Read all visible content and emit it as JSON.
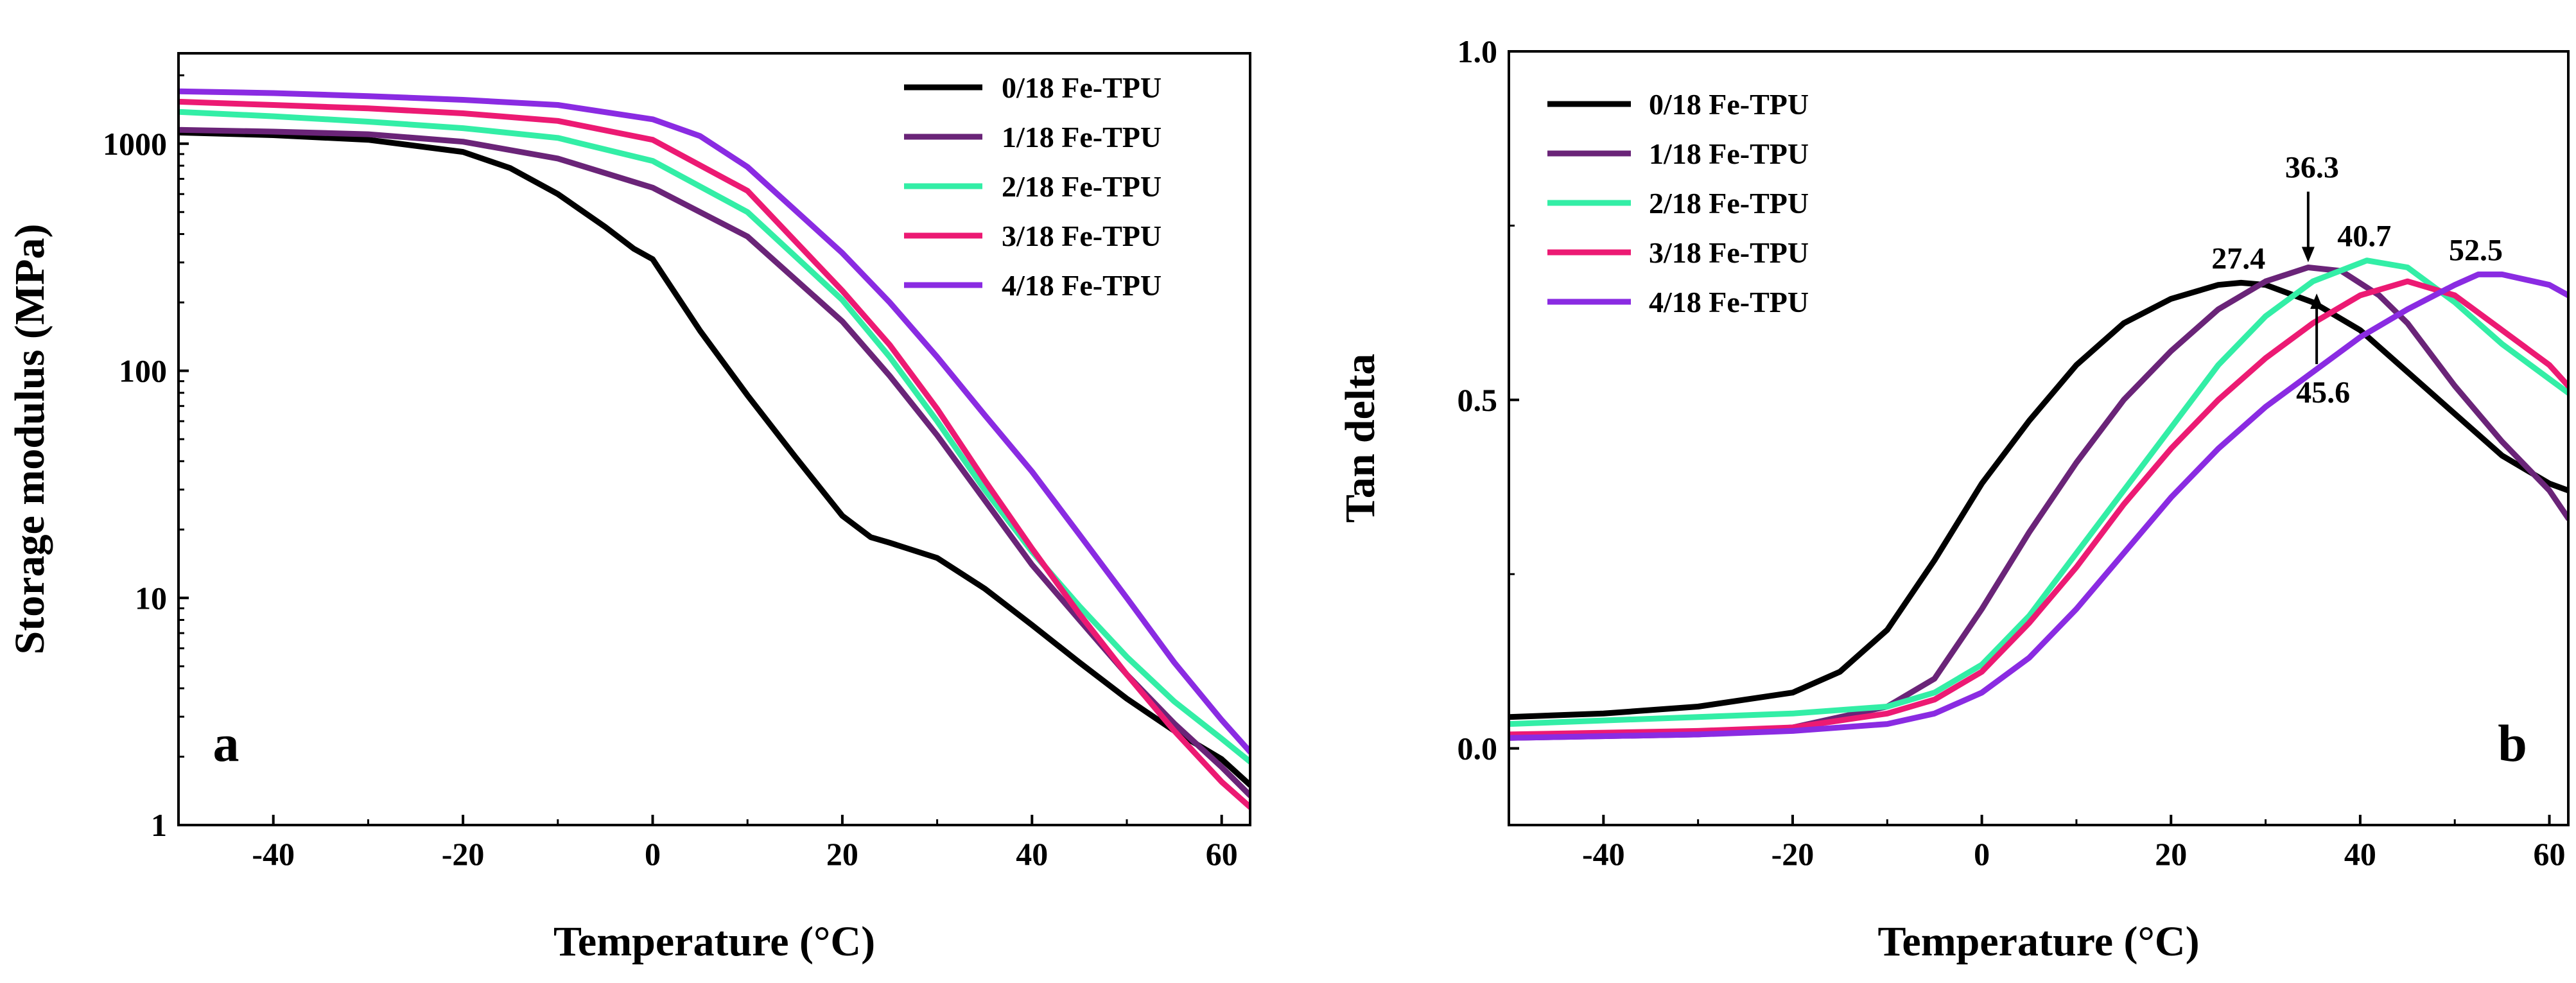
{
  "colors": {
    "black": "#000000",
    "purple": "#6a2478",
    "green": "#33eea6",
    "pink": "#ec1a73",
    "violet": "#8a2be2"
  },
  "chart_data": [
    {
      "id": "a",
      "type": "line",
      "panel_label": "a",
      "title": "",
      "xlabel": "Temperature (°C)",
      "ylabel": "Storage modulus (MPa)",
      "xlim": [
        -50,
        63
      ],
      "ylim": [
        1,
        2500
      ],
      "yscale": "log",
      "xticks": [
        -40,
        -20,
        0,
        20,
        40,
        60
      ],
      "xtick_labels": [
        "-40",
        "-20",
        "0",
        "20",
        "40",
        "60"
      ],
      "yticks": [
        1,
        10,
        100,
        1000
      ],
      "ytick_labels": [
        "1",
        "10",
        "100",
        "1000"
      ],
      "legend_position": "top-right",
      "series": [
        {
          "name": "0/18 Fe-TPU",
          "color": "#000000",
          "x": [
            -50,
            -40,
            -30,
            -20,
            -15,
            -10,
            -5,
            -2,
            0,
            5,
            10,
            15,
            20,
            23,
            25,
            30,
            35,
            40,
            45,
            50,
            55,
            60,
            63
          ],
          "y": [
            1120,
            1090,
            1040,
            920,
            780,
            600,
            430,
            345,
            310,
            150,
            78,
            42,
            23,
            18.5,
            17.5,
            15,
            11,
            7.6,
            5.2,
            3.6,
            2.6,
            1.95,
            1.5
          ]
        },
        {
          "name": "1/18 Fe-TPU",
          "color": "#6a2478",
          "x": [
            -50,
            -40,
            -30,
            -20,
            -10,
            0,
            10,
            20,
            25,
            30,
            35,
            40,
            45,
            50,
            55,
            60,
            63
          ],
          "y": [
            1150,
            1130,
            1100,
            1020,
            860,
            640,
            390,
            165,
            95,
            52,
            27,
            14,
            8,
            4.6,
            2.8,
            1.8,
            1.35
          ]
        },
        {
          "name": "2/18 Fe-TPU",
          "color": "#33eea6",
          "x": [
            -50,
            -40,
            -30,
            -20,
            -10,
            0,
            10,
            20,
            25,
            30,
            35,
            40,
            45,
            50,
            55,
            60,
            63
          ],
          "y": [
            1380,
            1320,
            1250,
            1170,
            1060,
            840,
            500,
            205,
            115,
            60,
            30,
            16,
            9.2,
            5.5,
            3.5,
            2.4,
            1.9
          ]
        },
        {
          "name": "3/18 Fe-TPU",
          "color": "#ec1a73",
          "x": [
            -50,
            -40,
            -30,
            -20,
            -10,
            0,
            10,
            20,
            25,
            30,
            35,
            40,
            45,
            50,
            55,
            60,
            63
          ],
          "y": [
            1530,
            1480,
            1430,
            1360,
            1260,
            1040,
            620,
            225,
            130,
            68,
            33,
            16.5,
            8.5,
            4.6,
            2.6,
            1.55,
            1.2
          ]
        },
        {
          "name": "4/18 Fe-TPU",
          "color": "#8a2be2",
          "x": [
            -50,
            -40,
            -30,
            -20,
            -10,
            0,
            5,
            10,
            20,
            25,
            30,
            35,
            40,
            45,
            50,
            55,
            60,
            63
          ],
          "y": [
            1700,
            1670,
            1620,
            1560,
            1480,
            1280,
            1080,
            790,
            330,
            200,
            115,
            64,
            36,
            19,
            10,
            5.2,
            2.9,
            2.1
          ]
        }
      ]
    },
    {
      "id": "b",
      "type": "line",
      "panel_label": "b",
      "title": "",
      "xlabel": "Temperature (°C)",
      "ylabel": "Tan delta",
      "xlim": [
        -50,
        62
      ],
      "ylim": [
        -0.11,
        1.0
      ],
      "yscale": "linear",
      "xticks": [
        -40,
        -20,
        0,
        20,
        40,
        60
      ],
      "xtick_labels": [
        "-40",
        "-20",
        "0",
        "20",
        "40",
        "60"
      ],
      "yticks": [
        0.0,
        0.5,
        1.0
      ],
      "ytick_labels": [
        "0.0",
        "0.5",
        "1.0"
      ],
      "legend_position": "top-left",
      "annotations": [
        {
          "text": "27.4",
          "x": 27.4,
          "y": 0.668,
          "style": "label"
        },
        {
          "text": "36.3",
          "x": 34.5,
          "y": 0.69,
          "style": "arrow-down"
        },
        {
          "text": "40.7",
          "x": 40.7,
          "y": 0.7,
          "style": "label"
        },
        {
          "text": "45.6",
          "x": 35.4,
          "y": 0.66,
          "style": "arrow-up"
        },
        {
          "text": "52.5",
          "x": 52.5,
          "y": 0.68,
          "style": "label"
        }
      ],
      "series": [
        {
          "name": "0/18 Fe-TPU",
          "color": "#000000",
          "x": [
            -50,
            -40,
            -30,
            -20,
            -15,
            -10,
            -5,
            0,
            5,
            10,
            15,
            20,
            25,
            27.4,
            30,
            35,
            40,
            45,
            50,
            55,
            60,
            62
          ],
          "y": [
            0.045,
            0.05,
            0.06,
            0.08,
            0.11,
            0.17,
            0.27,
            0.38,
            0.47,
            0.55,
            0.61,
            0.645,
            0.665,
            0.668,
            0.665,
            0.64,
            0.6,
            0.54,
            0.48,
            0.42,
            0.38,
            0.37
          ]
        },
        {
          "name": "1/18 Fe-TPU",
          "color": "#6a2478",
          "x": [
            -50,
            -30,
            -20,
            -10,
            -5,
            0,
            5,
            10,
            15,
            20,
            25,
            30,
            34.5,
            38,
            42,
            45,
            50,
            55,
            60,
            62
          ],
          "y": [
            0.015,
            0.02,
            0.03,
            0.06,
            0.1,
            0.2,
            0.31,
            0.41,
            0.5,
            0.57,
            0.63,
            0.67,
            0.69,
            0.685,
            0.65,
            0.61,
            0.52,
            0.44,
            0.37,
            0.33
          ]
        },
        {
          "name": "2/18 Fe-TPU",
          "color": "#33eea6",
          "x": [
            -50,
            -30,
            -20,
            -10,
            -5,
            0,
            5,
            10,
            15,
            20,
            25,
            30,
            35,
            40.7,
            45,
            50,
            55,
            60,
            62
          ],
          "y": [
            0.035,
            0.045,
            0.05,
            0.06,
            0.08,
            0.12,
            0.19,
            0.28,
            0.37,
            0.46,
            0.55,
            0.62,
            0.67,
            0.7,
            0.69,
            0.64,
            0.58,
            0.53,
            0.51
          ]
        },
        {
          "name": "3/18 Fe-TPU",
          "color": "#ec1a73",
          "x": [
            -50,
            -30,
            -20,
            -10,
            -5,
            0,
            5,
            10,
            15,
            20,
            25,
            30,
            35,
            40,
            45,
            50,
            55,
            60,
            62
          ],
          "y": [
            0.02,
            0.025,
            0.03,
            0.05,
            0.07,
            0.11,
            0.18,
            0.26,
            0.35,
            0.43,
            0.5,
            0.56,
            0.61,
            0.65,
            0.67,
            0.65,
            0.6,
            0.55,
            0.52
          ]
        },
        {
          "name": "4/18 Fe-TPU",
          "color": "#8a2be2",
          "x": [
            -50,
            -30,
            -20,
            -10,
            -5,
            0,
            5,
            10,
            15,
            20,
            25,
            30,
            35,
            40,
            45,
            50,
            52.5,
            55,
            60,
            62
          ],
          "y": [
            0.015,
            0.02,
            0.025,
            0.035,
            0.05,
            0.08,
            0.13,
            0.2,
            0.28,
            0.36,
            0.43,
            0.49,
            0.54,
            0.59,
            0.63,
            0.665,
            0.68,
            0.68,
            0.665,
            0.65
          ]
        }
      ]
    }
  ]
}
